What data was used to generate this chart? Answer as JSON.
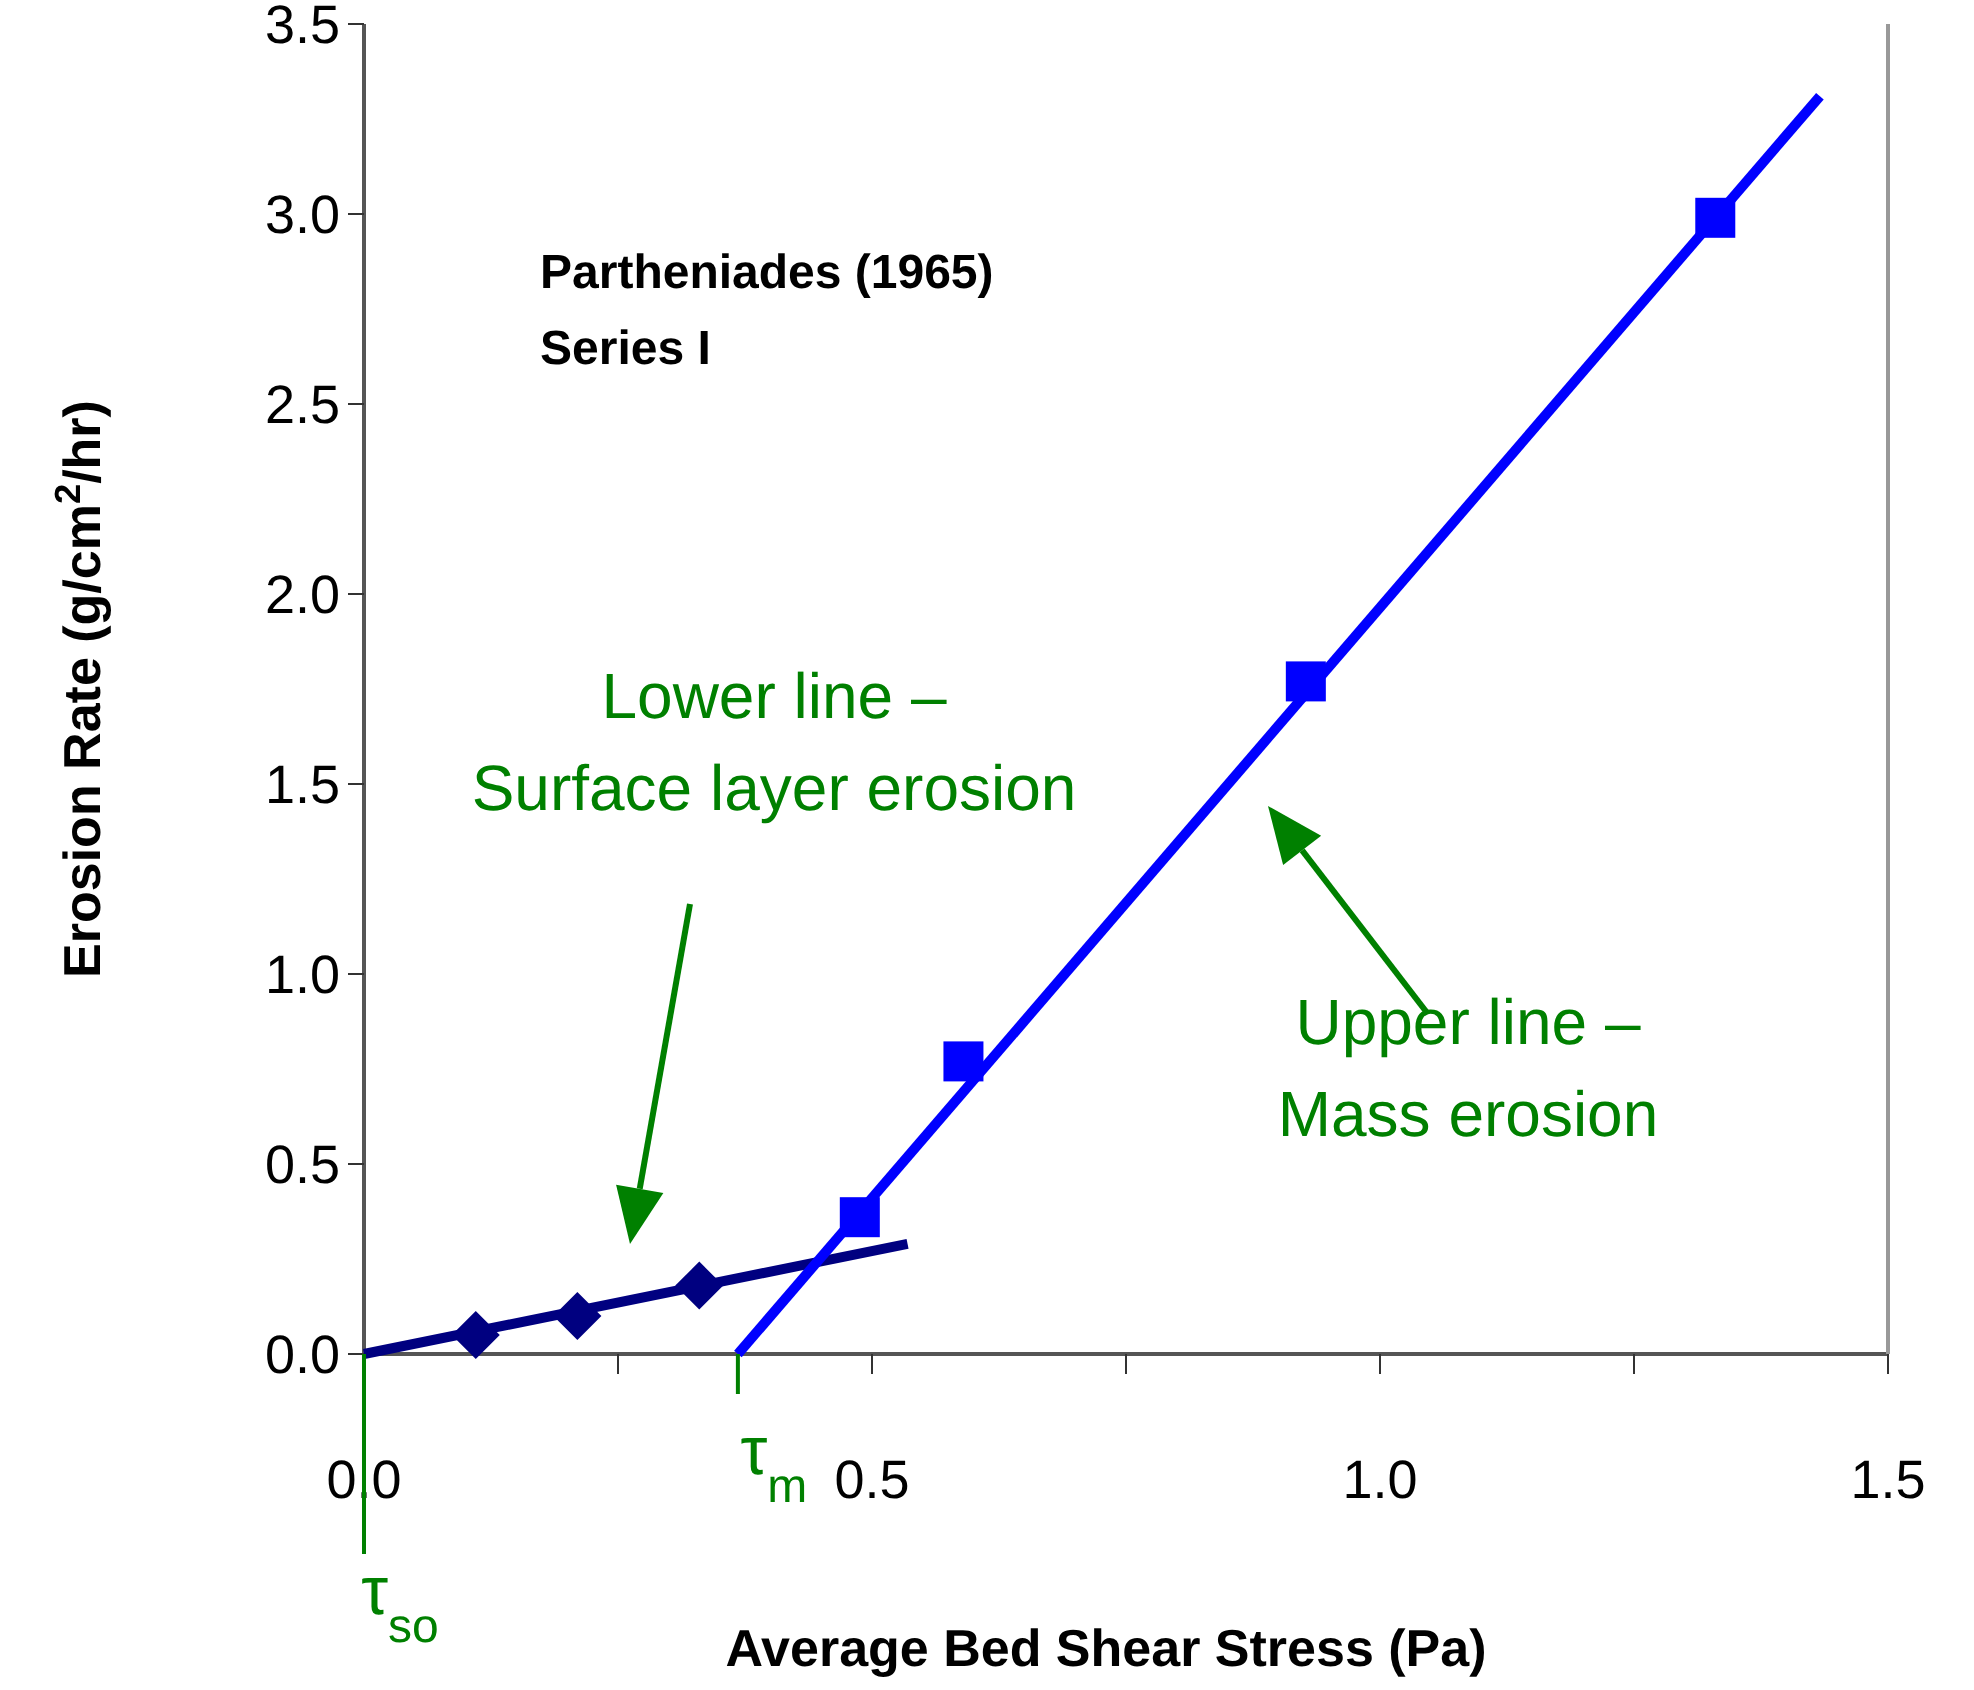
{
  "chart_data": {
    "type": "scatter",
    "title": "Partheniades (1965)",
    "subtitle": "Series I",
    "xlabel": "Average Bed Shear Stress (Pa)",
    "ylabel": "Erosion Rate (g/cm$^{2}$/hr)",
    "xlim": [
      0,
      1.5
    ],
    "xticks": [
      {
        "value": 0,
        "label": "0.0"
      },
      {
        "value": 0.25,
        "label": null
      },
      {
        "value": 0.5,
        "label": "0.5"
      },
      {
        "value": 0.75,
        "label": null
      },
      {
        "value": 1,
        "label": "1.0"
      },
      {
        "value": 1.25,
        "label": null
      },
      {
        "value": 1.5,
        "label": "1.5"
      }
    ],
    "ylim": [
      0,
      3.5
    ],
    "yticks": [
      {
        "value": 0,
        "label": "0.0"
      },
      {
        "value": 0.5,
        "label": "0.5"
      },
      {
        "value": 1,
        "label": "1.0"
      },
      {
        "value": 1.5,
        "label": "1.5"
      },
      {
        "value": 2,
        "label": "2.0"
      },
      {
        "value": 2.5,
        "label": "2.5"
      },
      {
        "value": 3,
        "label": "3.0"
      },
      {
        "value": 3.5,
        "label": "3.5"
      }
    ],
    "grid": false,
    "series": [
      {
        "type": "line",
        "color": "#000080",
        "x": [
          0,
          0.535
        ],
        "values": [
          0,
          0.29
        ]
      },
      {
        "type": "line",
        "color": "#0000ff",
        "x": [
          0.368,
          1.433
        ],
        "values": [
          0,
          3.31
        ]
      },
      {
        "color": "#000080",
        "x": [
          0.11,
          0.21,
          0.33
        ],
        "values": [
          0.05,
          0.1,
          0.18
        ],
        "marker": "diamond"
      },
      {
        "color": "#0000ff",
        "x": [
          0.488,
          0.59,
          0.927,
          1.33
        ],
        "values": [
          0.36,
          0.77,
          1.77,
          2.99
        ],
        "marker": "square"
      }
    ],
    "ref_lines": [
      {
        "axis": "x",
        "value": 0,
        "label": "τ$_{so}$",
        "color": "#008000"
      },
      {
        "axis": "x",
        "value": 0.368,
        "label": "τ$_{m}$",
        "color": "#008000"
      }
    ],
    "annotations": [
      "Lower line –\nSurface layer erosion",
      "Upper line –\nMass erosion"
    ]
  }
}
